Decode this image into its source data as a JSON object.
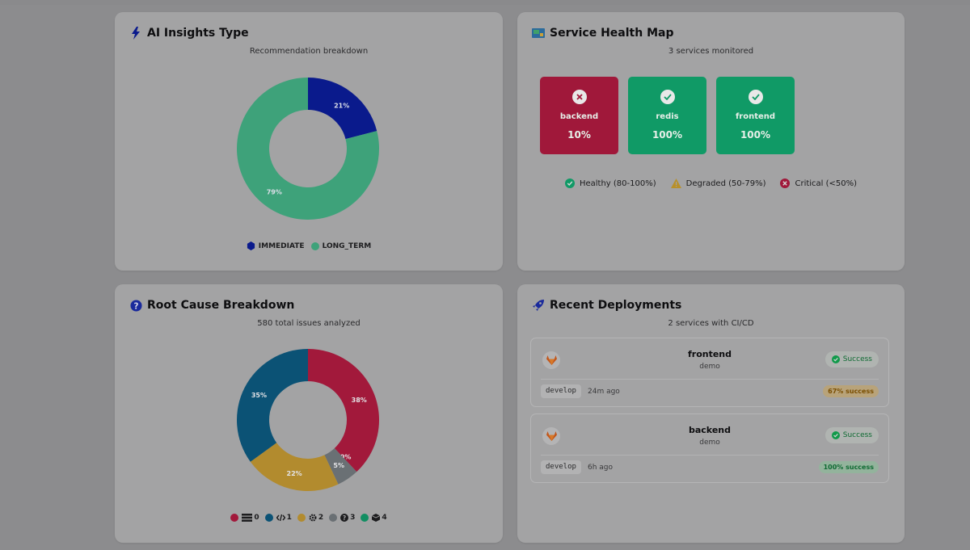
{
  "insights": {
    "title": "AI Insights Type",
    "subtitle": "Recommendation breakdown",
    "chart_data": {
      "type": "pie",
      "categories": [
        "IMMEDIATE",
        "LONG_TERM"
      ],
      "values": [
        21,
        79
      ],
      "labels": [
        "21%",
        "79%"
      ],
      "colors": [
        "#0a1a8c",
        "#3ea27a"
      ]
    },
    "legend": [
      {
        "label": "IMMEDIATE",
        "color": "#0a1a8c"
      },
      {
        "label": "LONG_TERM",
        "color": "#3ea27a"
      }
    ]
  },
  "health": {
    "title": "Service Health Map",
    "subtitle": "3 services monitored",
    "services": [
      {
        "name": "backend",
        "pct": "10%",
        "status": "critical",
        "color": "#a0183a"
      },
      {
        "name": "redis",
        "pct": "100%",
        "status": "healthy",
        "color": "#109a66"
      },
      {
        "name": "frontend",
        "pct": "100%",
        "status": "healthy",
        "color": "#109a66"
      }
    ],
    "legend": [
      {
        "label": "Healthy (80-100%)",
        "icon": "check-circle-icon",
        "color": "#109a66"
      },
      {
        "label": "Degraded (50-79%)",
        "icon": "warning-triangle-icon",
        "color": "#b8902a"
      },
      {
        "label": "Critical (<50%)",
        "icon": "x-circle-icon",
        "color": "#a0183a"
      }
    ]
  },
  "rootcause": {
    "title": "Root Cause Breakdown",
    "subtitle": "580 total issues analyzed",
    "chart_data": {
      "type": "pie",
      "categories": [
        "0",
        "1",
        "2",
        "3",
        "4"
      ],
      "values": [
        38,
        35,
        22,
        5,
        0
      ],
      "labels": [
        "38%",
        "35%",
        "22%",
        "5%",
        "0%"
      ],
      "colors": [
        "#a2193b",
        "#0b5275",
        "#b28b2e",
        "#6a7074",
        "#118e62"
      ],
      "draw_order": [
        0,
        4,
        3,
        2,
        1
      ]
    },
    "legend": [
      {
        "label": "0",
        "icon": "server-icon",
        "color": "#a2193b"
      },
      {
        "label": "1",
        "icon": "code-icon",
        "color": "#0b5275"
      },
      {
        "label": "2",
        "icon": "gear-icon",
        "color": "#b28b2e"
      },
      {
        "label": "3",
        "icon": "question-icon",
        "color": "#6a7074"
      },
      {
        "label": "4",
        "icon": "cube-icon",
        "color": "#118e62"
      }
    ]
  },
  "deployments": {
    "title": "Recent Deployments",
    "subtitle": "2 services with CI/CD",
    "items": [
      {
        "name": "frontend",
        "env": "demo",
        "status": "Success",
        "branch": "develop",
        "time": "24m ago",
        "rate": "67% success",
        "rate_color": "#7a4e00",
        "rate_bg": "#b8a37a"
      },
      {
        "name": "backend",
        "env": "demo",
        "status": "Success",
        "branch": "develop",
        "time": "6h ago",
        "rate": "100% success",
        "rate_color": "#0f6b33",
        "rate_bg": "#93b39c"
      }
    ]
  }
}
